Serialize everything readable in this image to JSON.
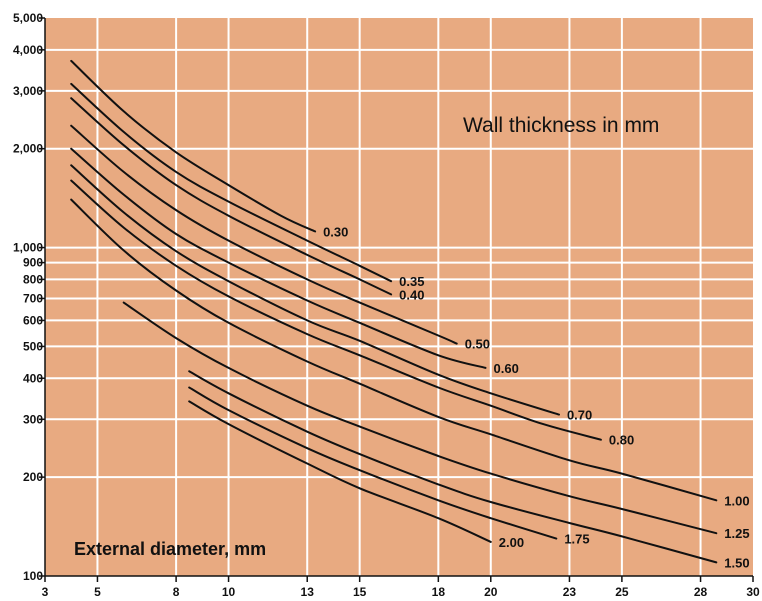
{
  "chart_data": {
    "type": "line",
    "title": "",
    "xlabel": "External diameter, mm",
    "ylabel": "",
    "legend_title": "Wall thickness in mm",
    "x_scale": "linear",
    "y_scale": "log",
    "xlim": [
      3,
      30
    ],
    "ylim": [
      100,
      5000
    ],
    "x_ticks": [
      3,
      5,
      8,
      10,
      13,
      15,
      18,
      20,
      23,
      25,
      28,
      30
    ],
    "x_tick_labels": [
      "3",
      "5",
      "8",
      "10",
      "13",
      "15",
      "18",
      "20",
      "23",
      "25",
      "28",
      "30"
    ],
    "y_ticks": [
      100,
      200,
      300,
      400,
      500,
      600,
      700,
      800,
      900,
      1000,
      2000,
      3000,
      4000,
      5000
    ],
    "y_tick_labels": [
      "100",
      "200",
      "300",
      "400",
      "500",
      "600",
      "700",
      "800",
      "900",
      "1,000",
      "2,000",
      "3,000",
      "4,000",
      "5,000"
    ],
    "grid": true,
    "colors": {
      "background": "#e8aa81",
      "grid": "#ffffff",
      "line": "#111111",
      "axis": "#111111"
    },
    "series": [
      {
        "name": "0.30",
        "x": [
          4.0,
          6,
          8,
          10,
          12,
          13.3
        ],
        "y": [
          3700,
          2600,
          1950,
          1550,
          1250,
          1120
        ]
      },
      {
        "name": "0.35",
        "x": [
          4.0,
          6,
          8,
          10,
          13,
          15,
          16.2
        ],
        "y": [
          3150,
          2250,
          1700,
          1380,
          1050,
          880,
          790
        ]
      },
      {
        "name": "0.40",
        "x": [
          4.0,
          6,
          8,
          10,
          13,
          15,
          16.2
        ],
        "y": [
          2850,
          2050,
          1550,
          1250,
          950,
          800,
          720
        ]
      },
      {
        "name": "0.50",
        "x": [
          4.0,
          6,
          8,
          10,
          13,
          15,
          18,
          18.7
        ],
        "y": [
          2350,
          1700,
          1300,
          1050,
          800,
          680,
          540,
          510
        ]
      },
      {
        "name": "0.60",
        "x": [
          4.0,
          6,
          8,
          10,
          13,
          15,
          18,
          19.8
        ],
        "y": [
          2000,
          1450,
          1100,
          900,
          690,
          590,
          470,
          430
        ]
      },
      {
        "name": "0.70",
        "x": [
          4.0,
          6,
          8,
          10,
          13,
          15,
          18,
          20,
          22.6
        ],
        "y": [
          1780,
          1280,
          975,
          790,
          600,
          520,
          410,
          360,
          310
        ]
      },
      {
        "name": "0.80",
        "x": [
          4.0,
          6,
          8,
          10,
          13,
          15,
          18,
          20,
          22,
          24.2
        ],
        "y": [
          1600,
          1150,
          880,
          710,
          545,
          470,
          375,
          330,
          290,
          260
        ]
      },
      {
        "name": "1.00",
        "x": [
          4.0,
          6,
          8,
          10,
          13,
          15,
          18,
          20,
          23,
          25,
          28.6
        ],
        "y": [
          1400,
          980,
          740,
          590,
          450,
          385,
          305,
          270,
          225,
          205,
          170
        ]
      },
      {
        "name": "1.25",
        "x": [
          6.0,
          8,
          10,
          13,
          15,
          18,
          20,
          23,
          25,
          28.6
        ],
        "y": [
          680,
          530,
          430,
          330,
          285,
          232,
          205,
          175,
          160,
          135
        ]
      },
      {
        "name": "1.50",
        "x": [
          8.5,
          10,
          13,
          15,
          18,
          20,
          23,
          25,
          28.6
        ],
        "y": [
          420,
          360,
          275,
          235,
          190,
          168,
          145,
          132,
          110
        ]
      },
      {
        "name": "1.75",
        "x": [
          8.5,
          10,
          13,
          15,
          18,
          20,
          22.5
        ],
        "y": [
          375,
          320,
          245,
          210,
          170,
          150,
          130
        ]
      },
      {
        "name": "2.00",
        "x": [
          8.5,
          10,
          13,
          15,
          18,
          20.0
        ],
        "y": [
          340,
          290,
          220,
          185,
          150,
          127
        ]
      }
    ]
  }
}
